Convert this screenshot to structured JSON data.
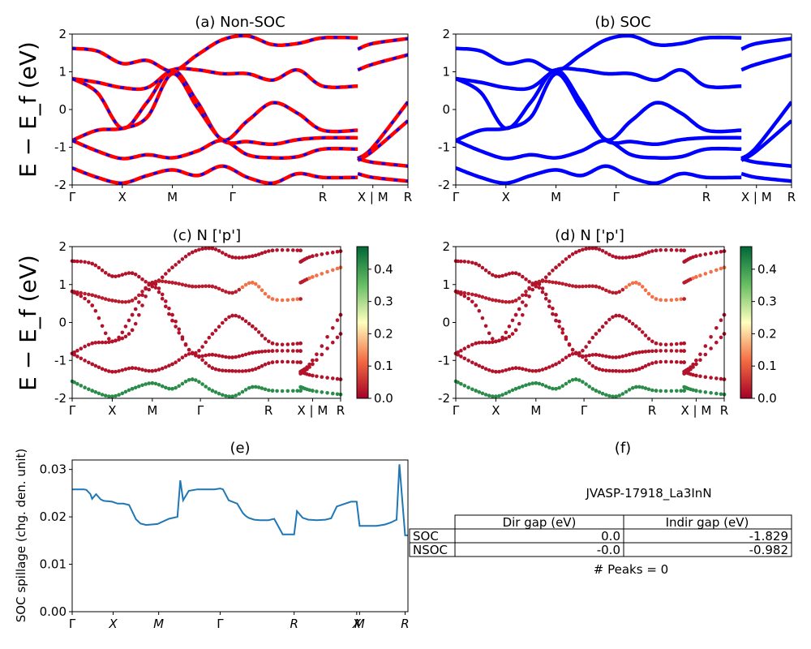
{
  "chart_data": [
    {
      "type": "line",
      "panel": "(a) Non-SOC",
      "title": "(a) Non-SOC",
      "ylabel": "E − E_f (eV)",
      "ylim": [
        -2,
        2
      ],
      "yticks": [
        -2,
        -1,
        0,
        1,
        2
      ],
      "xticks": [
        "Γ",
        "X",
        "M",
        "Γ",
        "R",
        "X | M",
        "R"
      ],
      "series": [
        {
          "values": [
            [
              0,
              1.62
            ],
            [
              0.5,
              1.55
            ],
            [
              1,
              1.22
            ],
            [
              1.5,
              1.3
            ],
            [
              2,
              1.02
            ],
            [
              2.5,
              1.45
            ],
            [
              3,
              1.85
            ],
            [
              3.5,
              1.95
            ],
            [
              4,
              1.72
            ],
            [
              4.5,
              1.75
            ],
            [
              5,
              1.9
            ],
            [
              5.7,
              1.9
            ],
            [
              5.7,
              1.6
            ],
            [
              6,
              1.75
            ],
            [
              6.7,
              1.88
            ]
          ],
          "color": "#ff0000"
        },
        {
          "values": [
            [
              0,
              0.82
            ],
            [
              0.5,
              0.72
            ],
            [
              1,
              0.58
            ],
            [
              1.5,
              0.58
            ],
            [
              2,
              1.05
            ],
            [
              2.5,
              1.05
            ],
            [
              3,
              0.95
            ],
            [
              3.5,
              0.95
            ],
            [
              4,
              0.78
            ],
            [
              4.5,
              1.05
            ],
            [
              5,
              0.62
            ],
            [
              5.7,
              0.62
            ],
            [
              5.7,
              1.05
            ],
            [
              6,
              1.2
            ],
            [
              6.7,
              1.45
            ]
          ],
          "color": "#ff0000"
        },
        {
          "values": [
            [
              0,
              0.82
            ],
            [
              0.5,
              0.45
            ],
            [
              1,
              -0.5
            ],
            [
              1.5,
              0.2
            ],
            [
              2,
              1.05
            ],
            [
              2.5,
              0.2
            ],
            [
              3,
              -0.8
            ],
            [
              3.5,
              -0.3
            ],
            [
              4,
              0.18
            ],
            [
              4.5,
              -0.1
            ],
            [
              5,
              -0.55
            ],
            [
              5.7,
              -0.55
            ],
            [
              5.7,
              -1.3
            ],
            [
              6,
              -1.0
            ],
            [
              6.7,
              0.2
            ]
          ],
          "color": "#ff0000"
        },
        {
          "values": [
            [
              0,
              -0.82
            ],
            [
              0.5,
              -0.55
            ],
            [
              1,
              -0.5
            ],
            [
              1.5,
              -0.2
            ],
            [
              2,
              0.95
            ],
            [
              2.5,
              0.05
            ],
            [
              3,
              -0.82
            ],
            [
              3.5,
              -0.85
            ],
            [
              4,
              -0.92
            ],
            [
              4.5,
              -0.8
            ],
            [
              5,
              -0.75
            ],
            [
              5.7,
              -0.75
            ],
            [
              5.7,
              -1.35
            ],
            [
              6,
              -1.1
            ],
            [
              6.7,
              -0.3
            ]
          ],
          "color": "#ff0000"
        },
        {
          "values": [
            [
              0,
              -0.82
            ],
            [
              0.5,
              -1.1
            ],
            [
              1,
              -1.3
            ],
            [
              1.5,
              -1.2
            ],
            [
              2,
              -1.28
            ],
            [
              2.5,
              -1.1
            ],
            [
              3,
              -0.82
            ],
            [
              3.5,
              -1.2
            ],
            [
              4,
              -1.28
            ],
            [
              4.5,
              -1.25
            ],
            [
              5,
              -1.05
            ],
            [
              5.7,
              -1.05
            ],
            [
              5.7,
              -1.3
            ],
            [
              6,
              -1.4
            ],
            [
              6.7,
              -1.5
            ]
          ],
          "color": "#ff0000"
        },
        {
          "values": [
            [
              0,
              -1.55
            ],
            [
              0.5,
              -1.8
            ],
            [
              1,
              -1.95
            ],
            [
              1.5,
              -1.75
            ],
            [
              2,
              -1.6
            ],
            [
              2.5,
              -1.75
            ],
            [
              3,
              -1.5
            ],
            [
              3.5,
              -1.8
            ],
            [
              4,
              -1.95
            ],
            [
              4.5,
              -1.7
            ],
            [
              5,
              -1.8
            ],
            [
              5.7,
              -1.8
            ],
            [
              5.7,
              -1.7
            ],
            [
              6,
              -1.8
            ],
            [
              6.7,
              -1.9
            ]
          ],
          "color": "#ff0000"
        }
      ]
    },
    {
      "type": "line",
      "panel": "(b) SOC",
      "title": "(b) SOC",
      "ylim": [
        -2,
        2
      ],
      "yticks": [
        -2,
        -1,
        0,
        1,
        2
      ],
      "xticks": [
        "Γ",
        "X",
        "M",
        "Γ",
        "R",
        "X | M",
        "R"
      ],
      "series": [
        {
          "values": [
            [
              0,
              1.62
            ],
            [
              0.5,
              1.55
            ],
            [
              1,
              1.22
            ],
            [
              1.5,
              1.3
            ],
            [
              2,
              1.02
            ],
            [
              2.5,
              1.45
            ],
            [
              3,
              1.85
            ],
            [
              3.5,
              1.95
            ],
            [
              4,
              1.72
            ],
            [
              4.5,
              1.75
            ],
            [
              5,
              1.9
            ],
            [
              5.7,
              1.9
            ],
            [
              5.7,
              1.6
            ],
            [
              6,
              1.75
            ],
            [
              6.7,
              1.88
            ]
          ],
          "color": "#0000ff"
        },
        {
          "values": [
            [
              0,
              0.82
            ],
            [
              0.5,
              0.72
            ],
            [
              1,
              0.58
            ],
            [
              1.5,
              0.58
            ],
            [
              2,
              1.05
            ],
            [
              2.5,
              1.05
            ],
            [
              3,
              0.95
            ],
            [
              3.5,
              0.95
            ],
            [
              4,
              0.78
            ],
            [
              4.5,
              1.05
            ],
            [
              5,
              0.62
            ],
            [
              5.7,
              0.62
            ],
            [
              5.7,
              1.05
            ],
            [
              6,
              1.2
            ],
            [
              6.7,
              1.45
            ]
          ],
          "color": "#0000ff"
        },
        {
          "values": [
            [
              0,
              0.82
            ],
            [
              0.5,
              0.45
            ],
            [
              1,
              -0.5
            ],
            [
              1.5,
              0.2
            ],
            [
              2,
              1.05
            ],
            [
              2.5,
              0.2
            ],
            [
              3,
              -0.8
            ],
            [
              3.5,
              -0.3
            ],
            [
              4,
              0.18
            ],
            [
              4.5,
              -0.1
            ],
            [
              5,
              -0.55
            ],
            [
              5.7,
              -0.55
            ],
            [
              5.7,
              -1.3
            ],
            [
              6,
              -1.0
            ],
            [
              6.7,
              0.2
            ]
          ],
          "color": "#0000ff"
        },
        {
          "values": [
            [
              0,
              -0.82
            ],
            [
              0.5,
              -0.55
            ],
            [
              1,
              -0.5
            ],
            [
              1.5,
              -0.2
            ],
            [
              2,
              0.95
            ],
            [
              2.5,
              0.05
            ],
            [
              3,
              -0.82
            ],
            [
              3.5,
              -0.85
            ],
            [
              4,
              -0.92
            ],
            [
              4.5,
              -0.8
            ],
            [
              5,
              -0.75
            ],
            [
              5.7,
              -0.75
            ],
            [
              5.7,
              -1.35
            ],
            [
              6,
              -1.1
            ],
            [
              6.7,
              -0.3
            ]
          ],
          "color": "#0000ff"
        },
        {
          "values": [
            [
              0,
              -0.82
            ],
            [
              0.5,
              -1.1
            ],
            [
              1,
              -1.3
            ],
            [
              1.5,
              -1.2
            ],
            [
              2,
              -1.28
            ],
            [
              2.5,
              -1.1
            ],
            [
              3,
              -0.82
            ],
            [
              3.5,
              -1.2
            ],
            [
              4,
              -1.28
            ],
            [
              4.5,
              -1.25
            ],
            [
              5,
              -1.05
            ],
            [
              5.7,
              -1.05
            ],
            [
              5.7,
              -1.3
            ],
            [
              6,
              -1.4
            ],
            [
              6.7,
              -1.5
            ]
          ],
          "color": "#0000ff"
        },
        {
          "values": [
            [
              0,
              -1.55
            ],
            [
              0.5,
              -1.8
            ],
            [
              1,
              -1.95
            ],
            [
              1.5,
              -1.75
            ],
            [
              2,
              -1.6
            ],
            [
              2.5,
              -1.75
            ],
            [
              3,
              -1.5
            ],
            [
              3.5,
              -1.8
            ],
            [
              4,
              -1.95
            ],
            [
              4.5,
              -1.7
            ],
            [
              5,
              -1.8
            ],
            [
              5.7,
              -1.8
            ],
            [
              5.7,
              -1.7
            ],
            [
              6,
              -1.8
            ],
            [
              6.7,
              -1.9
            ]
          ],
          "color": "#0000ff"
        }
      ]
    },
    {
      "type": "scatter",
      "panel": "(c)  N ['p']",
      "title": "(c)  N ['p']",
      "ylabel": "E − E_f (eV)",
      "ylim": [
        -2,
        2
      ],
      "yticks": [
        -2,
        -1,
        0,
        1,
        2
      ],
      "xticks": [
        "Γ",
        "X",
        "M",
        "Γ",
        "R",
        "X | M",
        "R"
      ],
      "colorbar": {
        "min": 0.0,
        "max": 0.47,
        "ticks": [
          "0.0",
          "0.1",
          "0.2",
          "0.3",
          "0.4"
        ],
        "colors": [
          "#a50026",
          "#f46d43",
          "#ffffbf",
          "#66bd63",
          "#006837"
        ]
      },
      "bands_projection": [
        0.02,
        0.03,
        0.02,
        0.02,
        0.02,
        0.42
      ]
    },
    {
      "type": "scatter",
      "panel": "(d) N ['p']",
      "title": "(d) N ['p']",
      "ylim": [
        -2,
        2
      ],
      "yticks": [
        -2,
        -1,
        0,
        1,
        2
      ],
      "xticks": [
        "Γ",
        "X",
        "M",
        "Γ",
        "R",
        "X | M",
        "R"
      ],
      "colorbar": {
        "min": 0.0,
        "max": 0.47,
        "ticks": [
          "0.0",
          "0.1",
          "0.2",
          "0.3",
          "0.4"
        ],
        "colors": [
          "#a50026",
          "#f46d43",
          "#ffffbf",
          "#66bd63",
          "#006837"
        ]
      },
      "bands_projection": [
        0.02,
        0.03,
        0.02,
        0.02,
        0.02,
        0.42
      ]
    },
    {
      "type": "line",
      "panel": "(e)",
      "title": "(e)",
      "ylabel": "SOC spillage (chg. den. unit)",
      "ylim": [
        0.0,
        0.032
      ],
      "yticks": [
        "0.00",
        "0.01",
        "0.02",
        "0.03"
      ],
      "xticks": [
        "Γ",
        "X",
        "M",
        "Γ",
        "R",
        "X",
        "M",
        "R"
      ],
      "x": [
        0,
        0.1,
        0.2,
        0.25,
        0.32,
        0.35,
        0.42,
        0.5,
        0.55,
        0.6,
        0.62,
        0.7,
        0.8,
        0.9,
        1.0,
        1.1,
        1.12,
        1.2,
        1.3,
        1.5,
        1.7,
        1.85,
        1.9,
        1.95,
        2.05,
        2.2,
        2.4,
        2.5,
        2.6,
        2.65,
        2.75,
        2.9,
        3.0,
        3.05,
        3.1,
        3.2,
        3.3,
        3.45,
        3.55,
        3.6,
        3.7,
        3.85,
        3.9,
        3.95,
        4.05,
        4.15,
        4.3,
        4.45,
        4.55,
        4.65,
        4.75,
        4.9,
        5.0,
        5.05,
        5.25,
        5.35,
        5.45,
        5.5,
        5.6,
        5.7,
        5.75,
        5.85,
        5.9
      ],
      "values": [
        0.0258,
        0.0258,
        0.0258,
        0.0257,
        0.0248,
        0.0238,
        0.0248,
        0.0237,
        0.0234,
        0.0233,
        0.0233,
        0.0232,
        0.0228,
        0.0228,
        0.0225,
        0.02,
        0.0195,
        0.0186,
        0.0183,
        0.0185,
        0.0196,
        0.02,
        0.0277,
        0.0235,
        0.0255,
        0.0258,
        0.0258,
        0.0258,
        0.026,
        0.0258,
        0.0235,
        0.0228,
        0.0208,
        0.0202,
        0.0198,
        0.0194,
        0.0193,
        0.0193,
        0.0196,
        0.0185,
        0.0163,
        0.0163,
        0.0163,
        0.0212,
        0.0198,
        0.0194,
        0.0193,
        0.0194,
        0.0197,
        0.0222,
        0.0226,
        0.0232,
        0.0232,
        0.0181,
        0.0181,
        0.0181,
        0.0183,
        0.0184,
        0.0188,
        0.0194,
        0.0311,
        0.0161,
        0.0161
      ],
      "color": "#1f77b4"
    }
  ],
  "panel_f": {
    "title": "(f)",
    "name": "JVASP-17918_La3InN",
    "headers": [
      "Dir gap (eV)",
      "Indir gap (eV)"
    ],
    "rows": [
      {
        "label": "SOC",
        "dir": "0.0",
        "indir": "-1.829"
      },
      {
        "label": "NSOC",
        "dir": "-0.0",
        "indir": "-0.982"
      }
    ],
    "peaks": "# Peaks = 0"
  }
}
